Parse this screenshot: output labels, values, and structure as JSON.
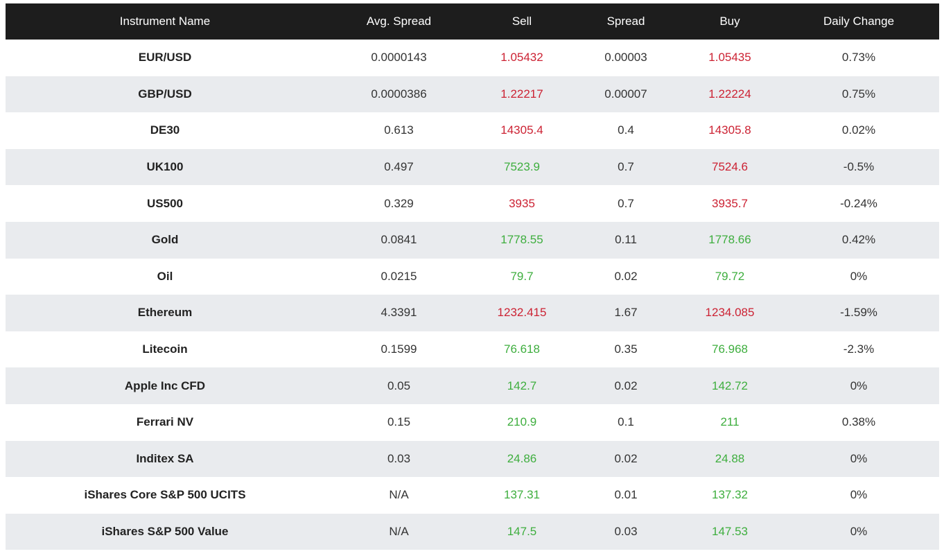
{
  "colors": {
    "header_bg": "#1d1d1d",
    "row_alt_bg": "#e9ebee",
    "red": "#cc2233",
    "green": "#3eae3e"
  },
  "columns": [
    "Instrument Name",
    "Avg. Spread",
    "Sell",
    "Spread",
    "Buy",
    "Daily Change"
  ],
  "rows": [
    {
      "name": "EUR/USD",
      "avg_spread": "0.0000143",
      "sell": "1.05432",
      "sell_color": "red",
      "spread": "0.00003",
      "buy": "1.05435",
      "buy_color": "red",
      "daily_change": "0.73%"
    },
    {
      "name": "GBP/USD",
      "avg_spread": "0.0000386",
      "sell": "1.22217",
      "sell_color": "red",
      "spread": "0.00007",
      "buy": "1.22224",
      "buy_color": "red",
      "daily_change": "0.75%"
    },
    {
      "name": "DE30",
      "avg_spread": "0.613",
      "sell": "14305.4",
      "sell_color": "red",
      "spread": "0.4",
      "buy": "14305.8",
      "buy_color": "red",
      "daily_change": "0.02%"
    },
    {
      "name": "UK100",
      "avg_spread": "0.497",
      "sell": "7523.9",
      "sell_color": "green",
      "spread": "0.7",
      "buy": "7524.6",
      "buy_color": "red",
      "daily_change": "-0.5%"
    },
    {
      "name": "US500",
      "avg_spread": "0.329",
      "sell": "3935",
      "sell_color": "red",
      "spread": "0.7",
      "buy": "3935.7",
      "buy_color": "red",
      "daily_change": "-0.24%"
    },
    {
      "name": "Gold",
      "avg_spread": "0.0841",
      "sell": "1778.55",
      "sell_color": "green",
      "spread": "0.11",
      "buy": "1778.66",
      "buy_color": "green",
      "daily_change": "0.42%"
    },
    {
      "name": "Oil",
      "avg_spread": "0.0215",
      "sell": "79.7",
      "sell_color": "green",
      "spread": "0.02",
      "buy": "79.72",
      "buy_color": "green",
      "daily_change": "0%"
    },
    {
      "name": "Ethereum",
      "avg_spread": "4.3391",
      "sell": "1232.415",
      "sell_color": "red",
      "spread": "1.67",
      "buy": "1234.085",
      "buy_color": "red",
      "daily_change": "-1.59%"
    },
    {
      "name": "Litecoin",
      "avg_spread": "0.1599",
      "sell": "76.618",
      "sell_color": "green",
      "spread": "0.35",
      "buy": "76.968",
      "buy_color": "green",
      "daily_change": "-2.3%"
    },
    {
      "name": "Apple Inc CFD",
      "avg_spread": "0.05",
      "sell": "142.7",
      "sell_color": "green",
      "spread": "0.02",
      "buy": "142.72",
      "buy_color": "green",
      "daily_change": "0%"
    },
    {
      "name": "Ferrari NV",
      "avg_spread": "0.15",
      "sell": "210.9",
      "sell_color": "green",
      "spread": "0.1",
      "buy": "211",
      "buy_color": "green",
      "daily_change": "0.38%"
    },
    {
      "name": "Inditex SA",
      "avg_spread": "0.03",
      "sell": "24.86",
      "sell_color": "green",
      "spread": "0.02",
      "buy": "24.88",
      "buy_color": "green",
      "daily_change": "0%"
    },
    {
      "name": "iShares Core S&P 500 UCITS",
      "avg_spread": "N/A",
      "sell": "137.31",
      "sell_color": "green",
      "spread": "0.01",
      "buy": "137.32",
      "buy_color": "green",
      "daily_change": "0%"
    },
    {
      "name": "iShares S&P 500 Value",
      "avg_spread": "N/A",
      "sell": "147.5",
      "sell_color": "green",
      "spread": "0.03",
      "buy": "147.53",
      "buy_color": "green",
      "daily_change": "0%"
    }
  ]
}
